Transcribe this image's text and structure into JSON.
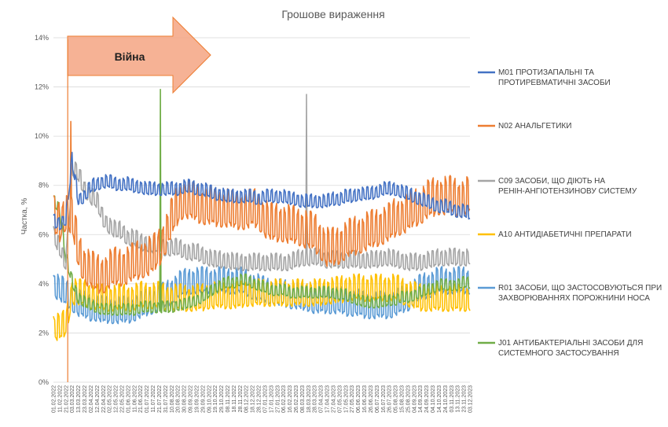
{
  "chart_data": {
    "type": "line",
    "title": "Грошове вираження",
    "xlabel": "",
    "ylabel": "Частка, %",
    "ylim": [
      0,
      14
    ],
    "yticks": [
      "0%",
      "2%",
      "4%",
      "6%",
      "8%",
      "10%",
      "12%",
      "14%"
    ],
    "grid": true,
    "legend_position": "right",
    "x_start": "2022-02-01",
    "x_end": "2023-12-05",
    "categories": [
      "01.02.2022",
      "11.02.2022",
      "21.02.2022",
      "03.03.2022",
      "13.03.2022",
      "23.03.2022",
      "02.04.2022",
      "12.04.2022",
      "22.04.2022",
      "02.05.2022",
      "12.05.2022",
      "22.05.2022",
      "01.06.2022",
      "11.06.2022",
      "21.06.2022",
      "01.07.2022",
      "11.07.2022",
      "21.07.2022",
      "31.07.2022",
      "10.08.2022",
      "20.08.2022",
      "30.08.2022",
      "09.09.2022",
      "19.09.2022",
      "29.09.2022",
      "09.10.2022",
      "19.10.2022",
      "29.10.2022",
      "08.11.2022",
      "18.11.2022",
      "28.11.2022",
      "08.12.2022",
      "18.12.2022",
      "28.12.2022",
      "07.01.2023",
      "17.01.2023",
      "27.01.2023",
      "06.02.2023",
      "16.02.2023",
      "26.02.2023",
      "08.03.2023",
      "18.03.2023",
      "28.03.2023",
      "07.04.2023",
      "17.04.2023",
      "27.04.2023",
      "07.05.2023",
      "17.05.2023",
      "27.05.2023",
      "06.06.2023",
      "16.06.2023",
      "26.06.2023",
      "06.07.2023",
      "16.07.2023",
      "26.07.2023",
      "05.08.2023",
      "15.08.2023",
      "25.08.2023",
      "04.09.2023",
      "14.09.2023",
      "24.09.2023",
      "04.10.2023",
      "14.10.2023",
      "24.10.2023",
      "03.11.2023",
      "13.11.2023",
      "23.11.2023",
      "03.12.2023"
    ],
    "war_label": "Війна",
    "war_start": "24.02.2022",
    "series": [
      {
        "name": "M01 ПРОТИЗАПАЛЬНІ ТА ПРОТИРЕВМАТИЧНІ ЗАСОБИ",
        "color": "#4472C4",
        "values": [
          6.5,
          6.4,
          6.6,
          9.0,
          7.4,
          7.5,
          7.9,
          8.0,
          8.1,
          8.1,
          8.0,
          8.0,
          8.0,
          7.9,
          7.9,
          7.8,
          7.8,
          7.8,
          7.8,
          7.8,
          7.8,
          7.9,
          7.9,
          7.8,
          7.8,
          7.7,
          7.6,
          7.6,
          7.5,
          7.5,
          7.5,
          7.5,
          7.5,
          7.4,
          7.5,
          7.5,
          7.5,
          7.5,
          7.4,
          7.4,
          7.3,
          7.3,
          7.3,
          7.3,
          7.3,
          7.4,
          7.4,
          7.5,
          7.5,
          7.6,
          7.6,
          7.6,
          7.7,
          7.8,
          7.8,
          7.8,
          7.7,
          7.6,
          7.5,
          7.4,
          7.3,
          7.2,
          7.1,
          7.1,
          7.0,
          6.9,
          6.9,
          6.8
        ],
        "amplitude": 0.35
      },
      {
        "name": "N02 АНАЛЬГЕТИКИ",
        "color": "#ED7D31",
        "values": [
          6.6,
          6.3,
          6.8,
          6.6,
          5.2,
          4.6,
          4.4,
          4.2,
          4.2,
          4.4,
          4.5,
          4.5,
          4.6,
          4.7,
          4.8,
          4.9,
          5.0,
          5.3,
          5.8,
          6.5,
          7.0,
          7.3,
          7.2,
          7.1,
          7.0,
          7.0,
          6.9,
          6.9,
          6.9,
          6.8,
          6.8,
          6.8,
          6.9,
          6.8,
          6.5,
          6.3,
          6.3,
          6.3,
          6.2,
          6.2,
          6.1,
          6.0,
          5.9,
          5.6,
          5.3,
          5.3,
          5.4,
          5.6,
          5.7,
          5.8,
          5.9,
          6.0,
          6.1,
          6.2,
          6.3,
          6.5,
          6.6,
          6.7,
          6.9,
          7.0,
          7.2,
          7.3,
          7.4,
          7.4,
          7.4,
          7.3,
          7.3,
          7.4
        ],
        "amplitude": 1.0
      },
      {
        "name": "C09 ЗАСОБИ, ЩО ДІЮТЬ НА РЕНІН-АНГІОТЕНЗИНОВУ СИСТЕМУ",
        "color": "#A5A5A5",
        "values": [
          5.9,
          5.4,
          4.8,
          8.6,
          8.4,
          7.8,
          7.5,
          7.3,
          6.6,
          6.3,
          6.1,
          6.1,
          5.8,
          5.8,
          5.6,
          5.6,
          5.5,
          5.5,
          5.4,
          5.4,
          5.4,
          5.3,
          5.2,
          5.2,
          5.1,
          5.0,
          4.9,
          4.9,
          4.9,
          4.8,
          4.8,
          4.8,
          4.8,
          4.8,
          4.8,
          4.8,
          4.8,
          4.8,
          4.8,
          4.9,
          5.0,
          5.0,
          5.0,
          5.0,
          4.9,
          4.9,
          4.9,
          4.9,
          4.9,
          4.9,
          4.9,
          4.9,
          4.9,
          5.0,
          5.0,
          4.9,
          4.9,
          4.8,
          4.8,
          4.8,
          4.9,
          4.9,
          5.0,
          5.0,
          5.0,
          5.0,
          5.0,
          5.0
        ],
        "amplitude": 0.45
      },
      {
        "name": "A10 АНТИДІАБЕТИЧНІ ПРЕПАРАТИ",
        "color": "#FFC000",
        "values": [
          2.1,
          2.1,
          2.3,
          3.6,
          3.5,
          3.5,
          3.4,
          3.3,
          3.3,
          3.3,
          3.3,
          3.3,
          3.3,
          3.3,
          3.4,
          3.4,
          3.4,
          3.4,
          3.3,
          3.3,
          3.3,
          3.3,
          3.3,
          3.3,
          3.3,
          3.4,
          3.4,
          3.4,
          3.4,
          3.4,
          3.4,
          3.5,
          3.5,
          3.5,
          3.5,
          3.5,
          3.5,
          3.5,
          3.5,
          3.5,
          3.5,
          3.5,
          3.5,
          3.5,
          3.6,
          3.6,
          3.6,
          3.7,
          3.7,
          3.7,
          3.7,
          3.7,
          3.7,
          3.7,
          3.7,
          3.7,
          3.6,
          3.5,
          3.4,
          3.3,
          3.3,
          3.3,
          3.3,
          3.3,
          3.3,
          3.3,
          3.3,
          3.3
        ],
        "amplitude": 0.7
      },
      {
        "name": "R01 ЗАСОБИ, ЩО ЗАСТОСОВУЮТЬСЯ ПРИ ЗАХВОРЮВАННЯХ ПОРОЖНИНИ НОСА",
        "color": "#5B9BD5",
        "values": [
          3.9,
          3.7,
          3.5,
          3.3,
          3.1,
          3.0,
          2.9,
          2.9,
          2.8,
          2.8,
          2.8,
          2.8,
          2.8,
          2.9,
          3.0,
          3.1,
          3.2,
          3.3,
          3.4,
          3.6,
          3.8,
          3.9,
          4.0,
          4.0,
          4.0,
          4.0,
          4.0,
          4.0,
          4.0,
          4.0,
          4.0,
          3.9,
          3.8,
          3.7,
          3.6,
          3.6,
          3.5,
          3.5,
          3.4,
          3.4,
          3.3,
          3.3,
          3.2,
          3.2,
          3.2,
          3.2,
          3.2,
          3.1,
          3.1,
          3.1,
          3.0,
          3.0,
          3.0,
          3.0,
          3.0,
          3.1,
          3.2,
          3.3,
          3.5,
          3.7,
          3.8,
          3.9,
          4.0,
          4.0,
          4.0,
          4.0,
          4.0,
          4.0
        ],
        "amplitude": 0.7
      },
      {
        "name": "J01 АНТИБАКТЕРІАЛЬНІ ЗАСОБИ ДЛЯ СИСТЕМНОГО ЗАСТОСУВАННЯ",
        "color": "#70AD47",
        "values": [
          7.4,
          7.0,
          5.0,
          4.1,
          3.4,
          3.2,
          3.1,
          3.0,
          2.9,
          2.9,
          2.9,
          2.9,
          2.9,
          2.9,
          3.0,
          3.0,
          3.0,
          3.0,
          3.0,
          3.0,
          3.1,
          3.1,
          3.2,
          3.3,
          3.4,
          3.6,
          3.8,
          3.9,
          4.0,
          4.0,
          4.1,
          4.1,
          4.0,
          3.9,
          3.8,
          3.7,
          3.7,
          3.7,
          3.6,
          3.6,
          3.6,
          3.6,
          3.6,
          3.6,
          3.6,
          3.6,
          3.5,
          3.5,
          3.4,
          3.3,
          3.2,
          3.2,
          3.2,
          3.2,
          3.3,
          3.3,
          3.4,
          3.4,
          3.5,
          3.6,
          3.7,
          3.8,
          3.9,
          3.9,
          3.9,
          3.9,
          4.0,
          4.0
        ],
        "amplitude": 0.3,
        "spike": {
          "date": "23.07.2022",
          "value": 11.9
        }
      }
    ],
    "annotations": [
      {
        "series": "C09 ЗАСОБИ, ЩО ДІЮТЬ НА РЕНІН-АНГІОТЕНЗИНОВУ СИСТЕМУ",
        "date": "15.03.2023",
        "value": 11.7
      },
      {
        "series": "N02 АНАЛЬГЕТИКИ",
        "date": "01.03.2022",
        "value": 10.6
      }
    ]
  }
}
